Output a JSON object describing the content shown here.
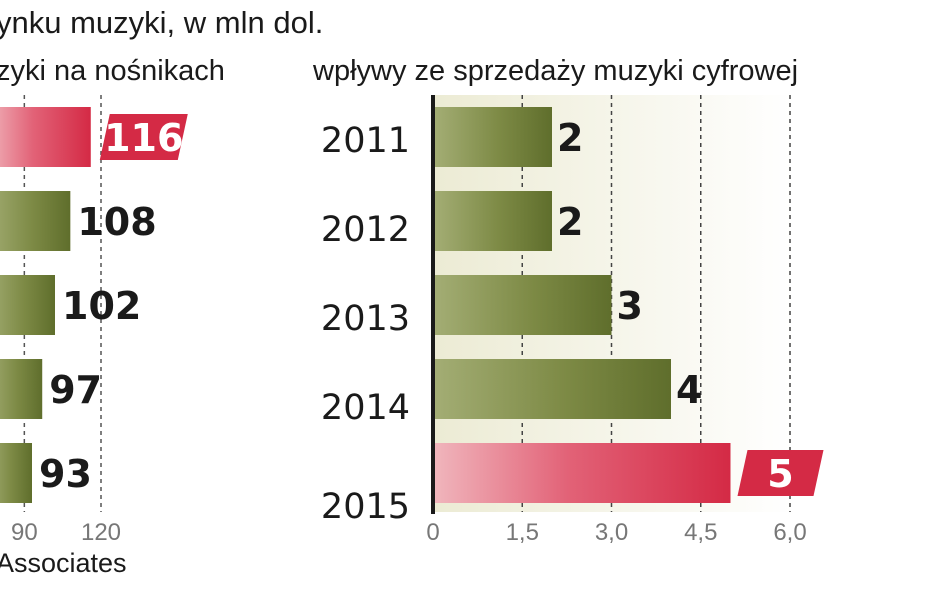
{
  "header": {
    "title": "ynku muzyki, w mln dol.",
    "source": "Associates"
  },
  "colors": {
    "bar_green": "#6b7a34",
    "bar_green_light": "#a3ad74",
    "bar_red": "#d42a45",
    "bar_red_light": "#f0b5bc",
    "plot_bg": "#f2f2e2",
    "text": "#1a1a1a",
    "axis_gray": "#777777"
  },
  "chart_data": [
    {
      "type": "bar",
      "orientation": "horizontal",
      "title": "zyki na nośnikach",
      "categories": [
        "2011",
        "2012",
        "2013",
        "2014",
        "2015"
      ],
      "values": [
        116,
        108,
        102,
        97,
        93
      ],
      "value_labels": [
        "116",
        "108",
        "102",
        "97",
        "93"
      ],
      "highlight_index": 0,
      "xticks": [
        "90",
        "120"
      ],
      "xtick_values": [
        90,
        120
      ],
      "xlim": [
        75,
        120
      ]
    },
    {
      "type": "bar",
      "orientation": "horizontal",
      "title": "wpływy ze sprzedaży muzyki cyfrowej",
      "categories": [
        "2011",
        "2012",
        "2013",
        "2014",
        "2015"
      ],
      "values": [
        2,
        2,
        3,
        4,
        5
      ],
      "value_labels": [
        "2",
        "2",
        "3",
        "4",
        "5"
      ],
      "highlight_index": 4,
      "xticks": [
        "0",
        "1,5",
        "3,0",
        "4,5",
        "6,0"
      ],
      "xtick_values": [
        0,
        1.5,
        3.0,
        4.5,
        6.0
      ],
      "xlim": [
        0,
        6.0
      ]
    }
  ]
}
